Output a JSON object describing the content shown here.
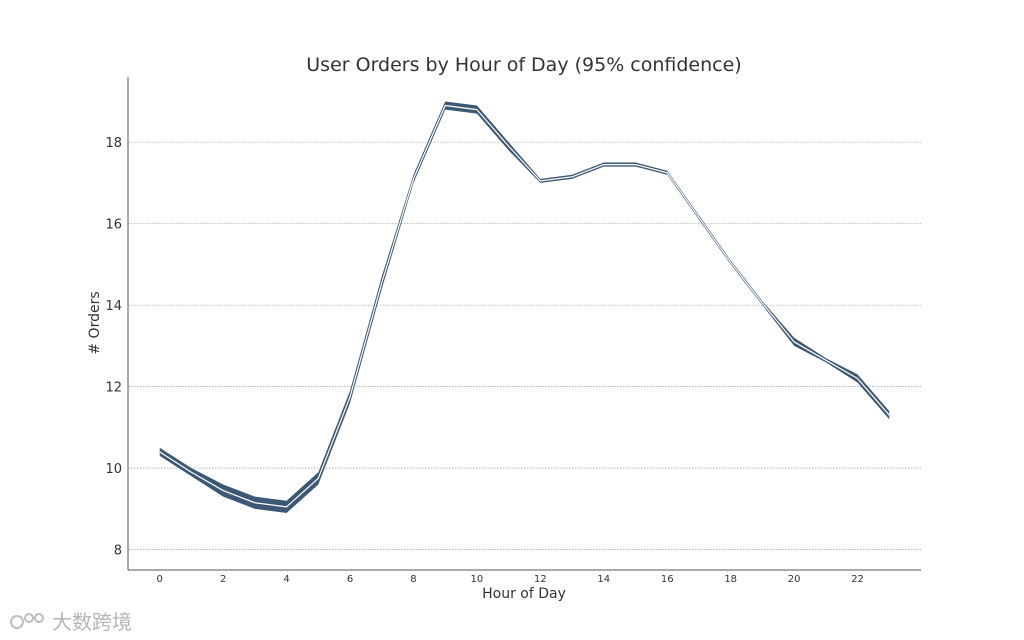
{
  "chart_data": {
    "type": "area",
    "title": "User Orders by Hour of Day (95% confidence)",
    "xlabel": "Hour of Day",
    "ylabel": "# Orders",
    "xlim": [
      -1,
      24
    ],
    "ylim": [
      7.5,
      19.6
    ],
    "x_ticks": [
      0,
      2,
      4,
      6,
      8,
      10,
      12,
      14,
      16,
      18,
      20,
      22
    ],
    "y_ticks": [
      8,
      10,
      12,
      14,
      16,
      18
    ],
    "grid": "horizontal",
    "series": [
      {
        "x": [
          0,
          1,
          2,
          3,
          4,
          5,
          6,
          7,
          8,
          9,
          10,
          11,
          12,
          13,
          14,
          15,
          16,
          17,
          18,
          19,
          20,
          21,
          22,
          23
        ],
        "lower": [
          10.3,
          9.8,
          9.3,
          9.0,
          8.9,
          9.6,
          11.6,
          14.4,
          17.0,
          18.8,
          18.7,
          17.8,
          17.0,
          17.1,
          17.4,
          17.4,
          17.2,
          16.1,
          15.0,
          14.0,
          13.0,
          12.6,
          12.1,
          11.2
        ],
        "upper": [
          10.5,
          10.0,
          9.6,
          9.3,
          9.2,
          9.9,
          11.9,
          14.7,
          17.2,
          19.0,
          18.9,
          18.0,
          17.1,
          17.2,
          17.5,
          17.5,
          17.3,
          16.2,
          15.1,
          14.1,
          13.2,
          12.7,
          12.3,
          11.4
        ],
        "color": "#3d5874"
      }
    ]
  },
  "watermark": {
    "text": "大数跨境"
  }
}
